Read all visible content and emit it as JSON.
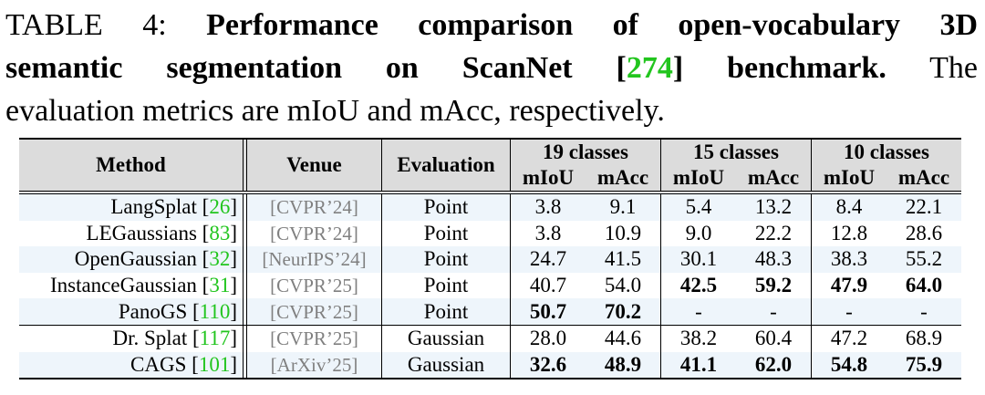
{
  "caption": {
    "label": "TABLE 4:",
    "bold_text_1": "Performance comparison of open-vocabulary 3D",
    "bold_text_2": "semantic segmentation on ScanNet [",
    "ref": "274",
    "bold_text_3": "] benchmark.",
    "normal_text_1": " The",
    "normal_text_2": "evaluation metrics are mIoU and mAcc, respectively."
  },
  "table": {
    "headers": {
      "method": "Method",
      "venue": "Venue",
      "evaluation": "Evaluation",
      "groups": [
        "19 classes",
        "15 classes",
        "10 classes"
      ],
      "metrics": [
        "mIoU",
        "mAcc"
      ]
    },
    "rows": [
      {
        "name": "LangSplat",
        "ref": "26",
        "venue": "[CVPR’24]",
        "eval": "Point",
        "vals": [
          "3.8",
          "9.1",
          "5.4",
          "13.2",
          "8.4",
          "22.1"
        ]
      },
      {
        "name": "LEGaussians",
        "ref": "83",
        "venue": "[CVPR’24]",
        "eval": "Point",
        "vals": [
          "3.8",
          "10.9",
          "9.0",
          "22.2",
          "12.8",
          "28.6"
        ]
      },
      {
        "name": "OpenGaussian",
        "ref": "32",
        "venue": "[NeurIPS’24]",
        "eval": "Point",
        "vals": [
          "24.7",
          "41.5",
          "30.1",
          "48.3",
          "38.3",
          "55.2"
        ]
      },
      {
        "name": "InstanceGaussian",
        "ref": "31",
        "venue": "[CVPR’25]",
        "eval": "Point",
        "vals": [
          "40.7",
          "54.0",
          "42.5",
          "59.2",
          "47.9",
          "64.0"
        ]
      },
      {
        "name": "PanoGS",
        "ref": "110",
        "venue": "[CVPR’25]",
        "eval": "Point",
        "vals": [
          "50.7",
          "70.2",
          "-",
          "-",
          "-",
          "-"
        ]
      },
      {
        "name": "Dr. Splat",
        "ref": "117",
        "venue": "[CVPR’25]",
        "eval": "Gaussian",
        "vals": [
          "28.0",
          "44.6",
          "38.2",
          "60.4",
          "47.2",
          "68.9"
        ]
      },
      {
        "name": "CAGS",
        "ref": "101",
        "venue": "[ArXiv’25]",
        "eval": "Gaussian",
        "vals": [
          "32.6",
          "48.9",
          "41.1",
          "62.0",
          "54.8",
          "75.9"
        ]
      }
    ],
    "bold_cells": [
      [
        3,
        2
      ],
      [
        3,
        3
      ],
      [
        3,
        4
      ],
      [
        3,
        5
      ],
      [
        4,
        0
      ],
      [
        4,
        1
      ],
      [
        6,
        0
      ],
      [
        6,
        1
      ],
      [
        6,
        2
      ],
      [
        6,
        3
      ],
      [
        6,
        4
      ],
      [
        6,
        5
      ]
    ]
  }
}
